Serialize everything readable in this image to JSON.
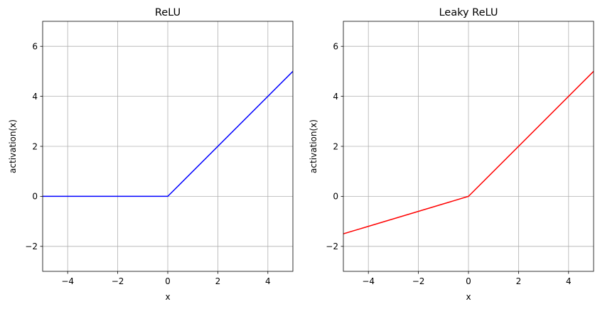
{
  "chart_data": [
    {
      "type": "line",
      "title": "ReLU",
      "xlabel": "x",
      "ylabel": "activation(x)",
      "xlim": [
        -5,
        5
      ],
      "ylim": [
        -3,
        7
      ],
      "xticks": [
        -4,
        -2,
        0,
        2,
        4
      ],
      "yticks": [
        -2,
        0,
        2,
        4,
        6
      ],
      "grid": true,
      "series": [
        {
          "color": "#0000ff",
          "x": [
            -5,
            0,
            5
          ],
          "y": [
            0,
            0,
            5
          ]
        }
      ]
    },
    {
      "type": "line",
      "title": "Leaky ReLU",
      "xlabel": "x",
      "ylabel": "activation(x)",
      "xlim": [
        -5,
        5
      ],
      "ylim": [
        -3,
        7
      ],
      "xticks": [
        -4,
        -2,
        0,
        2,
        4
      ],
      "yticks": [
        -2,
        0,
        2,
        4,
        6
      ],
      "grid": true,
      "series": [
        {
          "color": "#ff0000",
          "x": [
            -5,
            0,
            5
          ],
          "y": [
            -1.5,
            0,
            5
          ]
        }
      ]
    }
  ]
}
